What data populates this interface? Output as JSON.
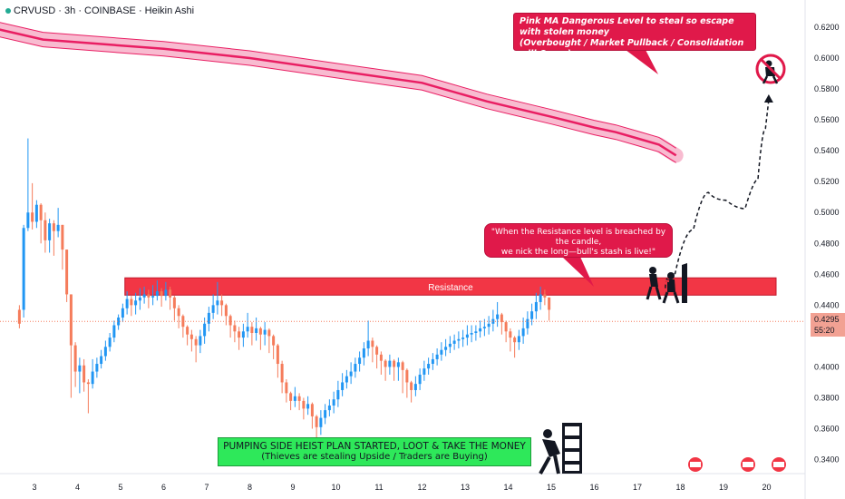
{
  "header": {
    "symbol_line": "CRVUSD · 3h · COINBASE · Heikin Ashi"
  },
  "annotations": {
    "pink_ma_note_line1": "Pink MA Dangerous Level to steal so escape with stolen money",
    "pink_ma_note_line2": "(Overbought / Market Pullback / Consolidation will Occur)",
    "quote_line1": "\"When the Resistance level is breached by the candle,",
    "quote_line2": "we nick the long—bull's stash is live!\"",
    "resistance_label": "Resistance",
    "green_line1": "PUMPING SIDE HEIST PLAN STARTED, LOOT & TAKE THE MONEY",
    "green_line2": "(Thieves are stealing Upside / Traders are Buying)"
  },
  "price_tag": {
    "price": "0.4295",
    "countdown": "55:20"
  },
  "colors": {
    "up": "#2196f3",
    "down": "#f57c5b",
    "resistance": "#f23645",
    "pink_ma": "#e91e63",
    "green_box": "#2ee85a"
  },
  "chart_data": {
    "type": "candlestick",
    "ylim": [
      0.333,
      0.624
    ],
    "y_ticks": [
      "0.6200",
      "0.6000",
      "0.5800",
      "0.5600",
      "0.5400",
      "0.5200",
      "0.5000",
      "0.4800",
      "0.4600",
      "0.4400",
      "0.4000",
      "0.3800",
      "0.3600",
      "0.3400"
    ],
    "x_ticks": [
      "3",
      "4",
      "5",
      "6",
      "7",
      "8",
      "9",
      "10",
      "11",
      "12",
      "13",
      "14",
      "15",
      "16",
      "17",
      "18",
      "19",
      "20"
    ],
    "resistance_zone": [
      0.4465,
      0.4577
    ],
    "pink_ma": [
      [
        0.7,
        0.628
      ],
      [
        3.2,
        0.612
      ],
      [
        6.0,
        0.606
      ],
      [
        8.0,
        0.6
      ],
      [
        10.0,
        0.592
      ],
      [
        12.0,
        0.584
      ],
      [
        13.5,
        0.572
      ],
      [
        15.0,
        0.562
      ],
      [
        16.0,
        0.555
      ],
      [
        16.5,
        0.552
      ],
      [
        17.0,
        0.548
      ],
      [
        17.5,
        0.544
      ],
      [
        17.9,
        0.537
      ]
    ],
    "projection": [
      [
        17.65,
        0.451
      ],
      [
        18.1,
        0.47
      ],
      [
        18.5,
        0.508
      ],
      [
        18.8,
        0.518
      ],
      [
        19.3,
        0.498
      ],
      [
        19.7,
        0.507
      ],
      [
        19.9,
        0.536
      ],
      [
        20.05,
        0.573
      ]
    ],
    "candles": [
      [
        2.65,
        0.437,
        0.428,
        0.44,
        0.425
      ],
      [
        2.75,
        0.437,
        0.49,
        0.492,
        0.432
      ],
      [
        2.85,
        0.49,
        0.5,
        0.548,
        0.488
      ],
      [
        2.95,
        0.5,
        0.494,
        0.519,
        0.489
      ],
      [
        3.05,
        0.494,
        0.505,
        0.508,
        0.49
      ],
      [
        3.15,
        0.505,
        0.495,
        0.506,
        0.48
      ],
      [
        3.25,
        0.495,
        0.482,
        0.5,
        0.474
      ],
      [
        3.35,
        0.482,
        0.493,
        0.496,
        0.474
      ],
      [
        3.45,
        0.493,
        0.488,
        0.495,
        0.472
      ],
      [
        3.55,
        0.488,
        0.492,
        0.503,
        0.484
      ],
      [
        3.65,
        0.492,
        0.476,
        0.492,
        0.463
      ],
      [
        3.75,
        0.476,
        0.447,
        0.476,
        0.442
      ],
      [
        3.85,
        0.447,
        0.414,
        0.447,
        0.38
      ],
      [
        3.95,
        0.414,
        0.397,
        0.416,
        0.387
      ],
      [
        4.05,
        0.397,
        0.401,
        0.406,
        0.383
      ],
      [
        4.15,
        0.401,
        0.39,
        0.405,
        0.384
      ],
      [
        4.25,
        0.39,
        0.389,
        0.392,
        0.37
      ],
      [
        4.35,
        0.389,
        0.397,
        0.405,
        0.386
      ],
      [
        4.45,
        0.397,
        0.402,
        0.406,
        0.393
      ],
      [
        4.55,
        0.402,
        0.407,
        0.411,
        0.399
      ],
      [
        4.65,
        0.407,
        0.413,
        0.417,
        0.404
      ],
      [
        4.75,
        0.413,
        0.419,
        0.422,
        0.41
      ],
      [
        4.85,
        0.419,
        0.427,
        0.43,
        0.416
      ],
      [
        4.95,
        0.427,
        0.432,
        0.434,
        0.424
      ],
      [
        5.05,
        0.432,
        0.438,
        0.441,
        0.429
      ],
      [
        5.15,
        0.438,
        0.444,
        0.449,
        0.434
      ],
      [
        5.25,
        0.444,
        0.44,
        0.446,
        0.433
      ],
      [
        5.35,
        0.44,
        0.443,
        0.448,
        0.434
      ],
      [
        5.45,
        0.443,
        0.445,
        0.451,
        0.437
      ],
      [
        5.55,
        0.445,
        0.447,
        0.452,
        0.441
      ],
      [
        5.65,
        0.447,
        0.445,
        0.45,
        0.438
      ],
      [
        5.75,
        0.445,
        0.446,
        0.453,
        0.44
      ],
      [
        5.85,
        0.446,
        0.449,
        0.456,
        0.443
      ],
      [
        5.95,
        0.449,
        0.446,
        0.451,
        0.439
      ],
      [
        6.05,
        0.446,
        0.45,
        0.455,
        0.443
      ],
      [
        6.15,
        0.45,
        0.445,
        0.452,
        0.437
      ],
      [
        6.25,
        0.445,
        0.438,
        0.446,
        0.43
      ],
      [
        6.35,
        0.438,
        0.433,
        0.44,
        0.425
      ],
      [
        6.45,
        0.433,
        0.426,
        0.434,
        0.419
      ],
      [
        6.55,
        0.426,
        0.421,
        0.427,
        0.414
      ],
      [
        6.65,
        0.421,
        0.418,
        0.424,
        0.41
      ],
      [
        6.75,
        0.418,
        0.414,
        0.42,
        0.403
      ],
      [
        6.85,
        0.414,
        0.42,
        0.424,
        0.409
      ],
      [
        6.95,
        0.42,
        0.428,
        0.432,
        0.415
      ],
      [
        7.05,
        0.428,
        0.435,
        0.439,
        0.423
      ],
      [
        7.15,
        0.435,
        0.44,
        0.447,
        0.431
      ],
      [
        7.25,
        0.44,
        0.443,
        0.455,
        0.434
      ],
      [
        7.35,
        0.443,
        0.44,
        0.447,
        0.433
      ],
      [
        7.45,
        0.44,
        0.433,
        0.441,
        0.427
      ],
      [
        7.55,
        0.433,
        0.427,
        0.434,
        0.419
      ],
      [
        7.65,
        0.427,
        0.423,
        0.43,
        0.416
      ],
      [
        7.75,
        0.423,
        0.419,
        0.426,
        0.411
      ],
      [
        7.85,
        0.419,
        0.423,
        0.428,
        0.413
      ],
      [
        7.95,
        0.423,
        0.426,
        0.435,
        0.419
      ],
      [
        8.05,
        0.426,
        0.422,
        0.429,
        0.414
      ],
      [
        8.15,
        0.422,
        0.425,
        0.432,
        0.417
      ],
      [
        8.25,
        0.425,
        0.421,
        0.426,
        0.411
      ],
      [
        8.35,
        0.421,
        0.424,
        0.429,
        0.414
      ],
      [
        8.45,
        0.424,
        0.42,
        0.425,
        0.409
      ],
      [
        8.55,
        0.42,
        0.414,
        0.421,
        0.405
      ],
      [
        8.65,
        0.414,
        0.402,
        0.415,
        0.393
      ],
      [
        8.75,
        0.402,
        0.39,
        0.404,
        0.383
      ],
      [
        8.85,
        0.39,
        0.383,
        0.392,
        0.377
      ],
      [
        8.95,
        0.383,
        0.378,
        0.384,
        0.372
      ],
      [
        9.05,
        0.378,
        0.381,
        0.387,
        0.374
      ],
      [
        9.15,
        0.381,
        0.378,
        0.383,
        0.372
      ],
      [
        9.25,
        0.378,
        0.373,
        0.38,
        0.366
      ],
      [
        9.35,
        0.373,
        0.376,
        0.381,
        0.369
      ],
      [
        9.45,
        0.376,
        0.368,
        0.377,
        0.36
      ],
      [
        9.55,
        0.368,
        0.361,
        0.369,
        0.351
      ],
      [
        9.65,
        0.361,
        0.367,
        0.372,
        0.356
      ],
      [
        9.75,
        0.367,
        0.372,
        0.376,
        0.363
      ],
      [
        9.85,
        0.372,
        0.375,
        0.379,
        0.368
      ],
      [
        9.95,
        0.375,
        0.379,
        0.384,
        0.37
      ],
      [
        10.05,
        0.379,
        0.385,
        0.391,
        0.374
      ],
      [
        10.15,
        0.385,
        0.39,
        0.396,
        0.381
      ],
      [
        10.25,
        0.39,
        0.394,
        0.398,
        0.386
      ],
      [
        10.35,
        0.394,
        0.397,
        0.403,
        0.389
      ],
      [
        10.45,
        0.397,
        0.402,
        0.406,
        0.393
      ],
      [
        10.55,
        0.402,
        0.406,
        0.41,
        0.397
      ],
      [
        10.65,
        0.406,
        0.412,
        0.416,
        0.401
      ],
      [
        10.75,
        0.412,
        0.417,
        0.43,
        0.407
      ],
      [
        10.85,
        0.417,
        0.413,
        0.419,
        0.403
      ],
      [
        10.95,
        0.413,
        0.408,
        0.414,
        0.399
      ],
      [
        11.05,
        0.408,
        0.404,
        0.41,
        0.395
      ],
      [
        11.15,
        0.404,
        0.4,
        0.405,
        0.391
      ],
      [
        11.25,
        0.4,
        0.404,
        0.408,
        0.395
      ],
      [
        11.35,
        0.404,
        0.4,
        0.405,
        0.391
      ],
      [
        11.45,
        0.4,
        0.403,
        0.406,
        0.391
      ],
      [
        11.55,
        0.403,
        0.398,
        0.404,
        0.383
      ],
      [
        11.65,
        0.398,
        0.39,
        0.399,
        0.38
      ],
      [
        11.75,
        0.39,
        0.385,
        0.391,
        0.377
      ],
      [
        11.85,
        0.385,
        0.389,
        0.394,
        0.381
      ],
      [
        11.95,
        0.389,
        0.395,
        0.399,
        0.385
      ],
      [
        12.05,
        0.395,
        0.399,
        0.404,
        0.391
      ],
      [
        12.15,
        0.399,
        0.402,
        0.406,
        0.395
      ],
      [
        12.25,
        0.402,
        0.405,
        0.409,
        0.398
      ],
      [
        12.35,
        0.405,
        0.408,
        0.412,
        0.401
      ],
      [
        12.45,
        0.408,
        0.411,
        0.416,
        0.404
      ],
      [
        12.55,
        0.411,
        0.413,
        0.418,
        0.407
      ],
      [
        12.65,
        0.413,
        0.415,
        0.42,
        0.409
      ],
      [
        12.75,
        0.415,
        0.417,
        0.421,
        0.411
      ],
      [
        12.85,
        0.417,
        0.418,
        0.423,
        0.412
      ],
      [
        12.95,
        0.418,
        0.419,
        0.424,
        0.413
      ],
      [
        13.05,
        0.419,
        0.421,
        0.427,
        0.414
      ],
      [
        13.15,
        0.421,
        0.422,
        0.427,
        0.416
      ],
      [
        13.25,
        0.422,
        0.423,
        0.427,
        0.417
      ],
      [
        13.35,
        0.423,
        0.425,
        0.43,
        0.419
      ],
      [
        13.45,
        0.425,
        0.426,
        0.431,
        0.42
      ],
      [
        13.55,
        0.426,
        0.428,
        0.433,
        0.421
      ],
      [
        13.65,
        0.428,
        0.431,
        0.437,
        0.423
      ],
      [
        13.75,
        0.431,
        0.434,
        0.442,
        0.426
      ],
      [
        13.85,
        0.434,
        0.429,
        0.435,
        0.421
      ],
      [
        13.95,
        0.429,
        0.423,
        0.43,
        0.416
      ],
      [
        14.05,
        0.423,
        0.419,
        0.425,
        0.41
      ],
      [
        14.15,
        0.419,
        0.416,
        0.42,
        0.406
      ],
      [
        14.25,
        0.416,
        0.42,
        0.424,
        0.411
      ],
      [
        14.35,
        0.42,
        0.425,
        0.432,
        0.415
      ],
      [
        14.45,
        0.425,
        0.431,
        0.436,
        0.421
      ],
      [
        14.55,
        0.431,
        0.436,
        0.441,
        0.427
      ],
      [
        14.65,
        0.436,
        0.442,
        0.448,
        0.431
      ],
      [
        14.75,
        0.442,
        0.447,
        0.452,
        0.437
      ],
      [
        14.85,
        0.447,
        0.445,
        0.45,
        0.44
      ],
      [
        14.95,
        0.445,
        0.437,
        0.445,
        0.43
      ]
    ]
  }
}
